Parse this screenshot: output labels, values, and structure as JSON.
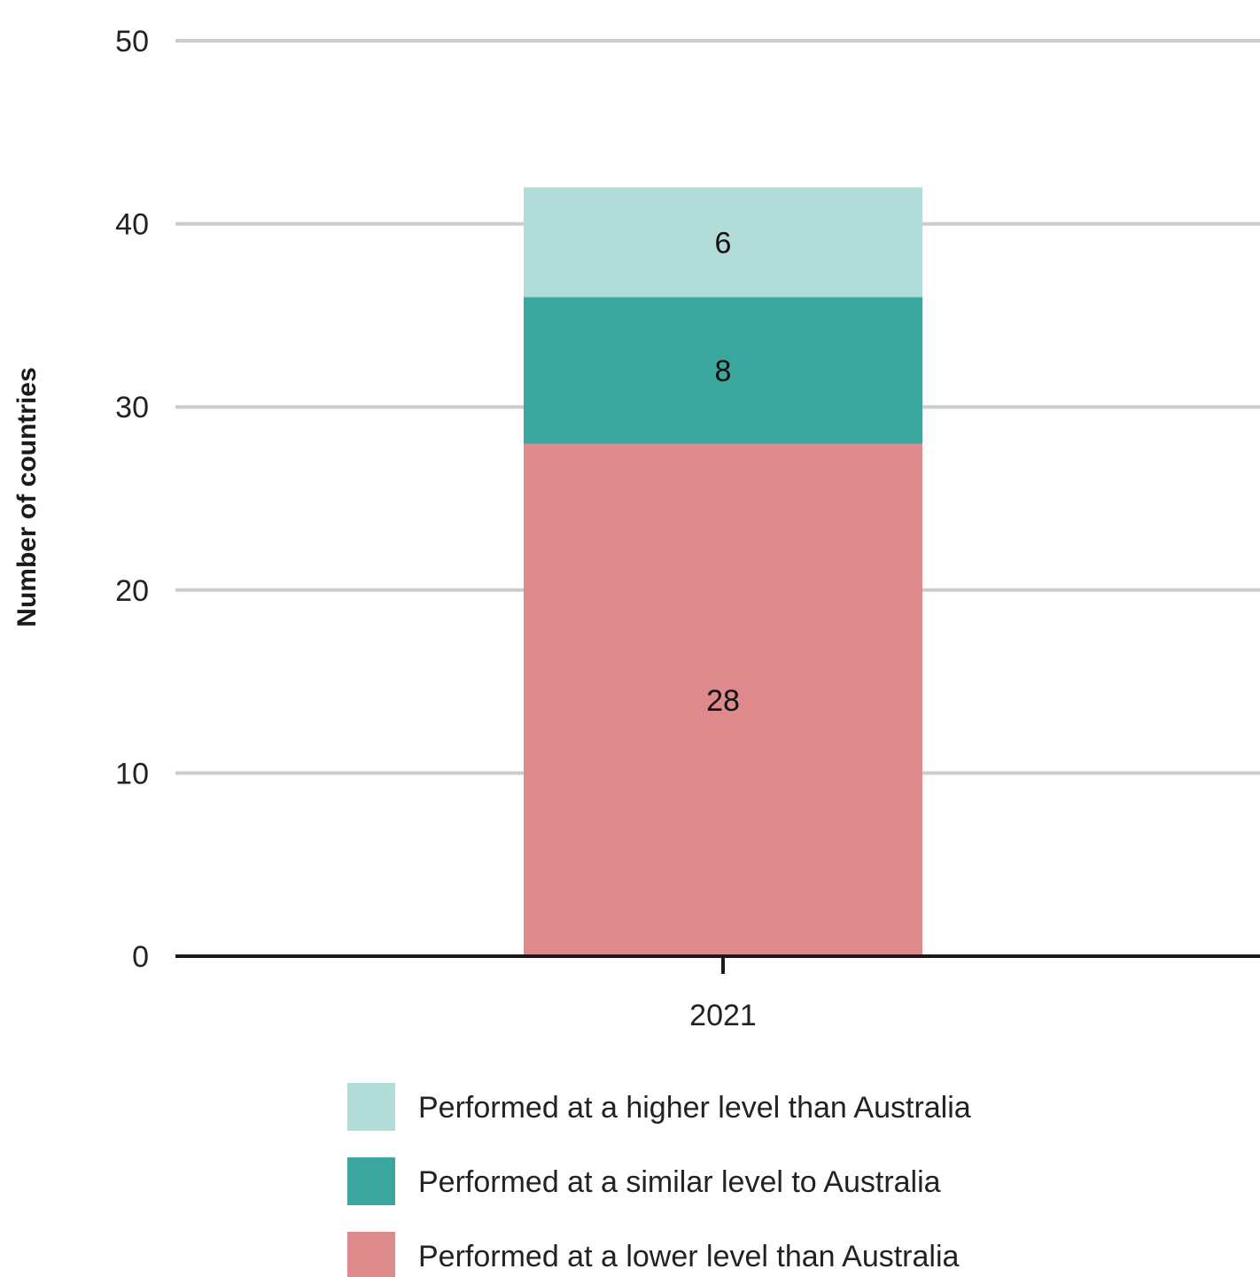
{
  "chart_data": {
    "type": "bar",
    "stacked": true,
    "categories": [
      "2021"
    ],
    "series": [
      {
        "name": "Performed at a lower level than Australia",
        "values": [
          28
        ],
        "color": "#de898b"
      },
      {
        "name": "Performed at a similar level to Australia",
        "values": [
          8
        ],
        "color": "#3aa69d"
      },
      {
        "name": "Performed at a higher level than Australia",
        "values": [
          6
        ],
        "color": "#b2dcd8"
      }
    ],
    "title": "",
    "xlabel": "",
    "ylabel": "Number of countries",
    "ylim": [
      0,
      50
    ],
    "yticks": [
      0,
      10,
      20,
      30,
      40,
      50
    ],
    "grid": true,
    "legend_position": "bottom",
    "legend_order": [
      2,
      1,
      0
    ]
  }
}
